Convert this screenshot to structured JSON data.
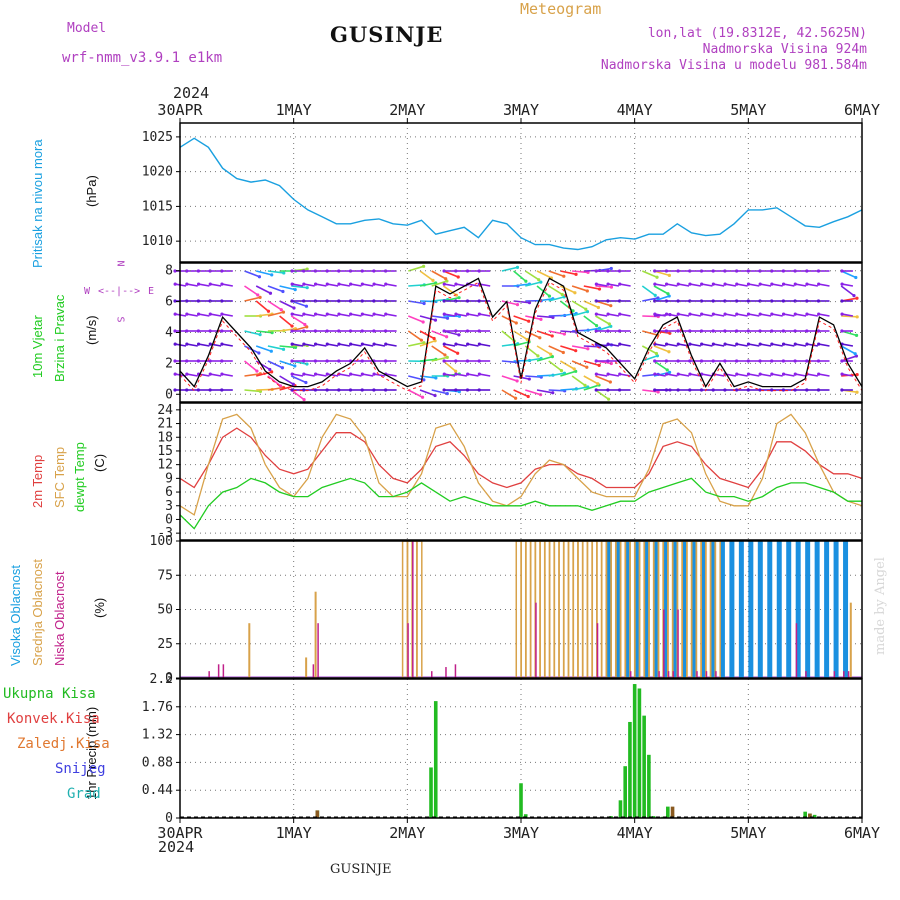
{
  "header": {
    "model_label": "Model",
    "model_name": "wrf-nmm_v3.9.1 e1km",
    "title": "GUSINJE",
    "meteogram": "Meteogram",
    "lonlat": "lon,lat (19.8312E, 42.5625N)",
    "elev": "Nadmorska Visina 924m",
    "elev_model": "Nadmorska Visina u modelu 981.584m",
    "footer": "GUSINJE",
    "watermark": "made by Angel"
  },
  "time_axis": {
    "year": "2024",
    "labels": [
      "30APR",
      "1MAY",
      "2MAY",
      "3MAY",
      "4MAY",
      "5MAY",
      "6MAY"
    ]
  },
  "side_labels": {
    "pressure": "Pritisak na nivou mora",
    "pressure_unit": "(hPa)",
    "wind1": "10m Vjetar",
    "wind2": "Brzina i Pravac",
    "wind_unit": "(m/s)",
    "compass_n": "N",
    "compass_s": "S",
    "compass_w": "W",
    "compass_e": "E",
    "temp1": "2m Temp",
    "temp2": "SFC Temp",
    "temp3": "dewpt Temp",
    "temp_unit": "(C)",
    "cloud1": "Visoka Oblacnost",
    "cloud2": "Srednja Oblacnost",
    "cloud3": "Niska Oblacnost",
    "cloud_unit": "(%)",
    "precip_unit": "1hr Precip (mm)",
    "legend": [
      "Ukupna Kisa",
      "Konvek.Kisa",
      "Zaledj.Kisa",
      "Snijeg",
      "Grad"
    ]
  },
  "colors": {
    "pressure": "#1aa0e0",
    "temp2m": "#e04040",
    "sfc": "#d8a24a",
    "dew": "#22cc22",
    "cloud_high": "#1a90e0",
    "cloud_mid": "#d8a24a",
    "cloud_low": "#c0208a",
    "rain_total": "#22bb22",
    "rain_conv": "#e04040",
    "freezing": "#e07830",
    "snow": "#4040e0",
    "hail": "#20b0b0",
    "label_purple": "#b040c0"
  },
  "chart_data": [
    {
      "type": "line",
      "name": "pressure",
      "ylabel": "(hPa)",
      "yticks": [
        1010,
        1015,
        1020,
        1025
      ],
      "ylim": [
        1007,
        1027
      ],
      "x_hours": [
        0,
        3,
        6,
        9,
        12,
        15,
        18,
        21,
        24,
        27,
        30,
        33,
        36,
        39,
        42,
        45,
        48,
        51,
        54,
        57,
        60,
        63,
        66,
        69,
        72,
        75,
        78,
        81,
        84,
        87,
        90,
        93,
        96,
        99,
        102,
        105,
        108,
        111,
        114,
        117,
        120,
        123,
        126,
        129,
        132,
        135,
        138,
        141,
        144
      ],
      "values": [
        1023.5,
        1024.8,
        1023.5,
        1020.5,
        1019.0,
        1018.5,
        1018.8,
        1018.0,
        1016.0,
        1014.5,
        1013.5,
        1012.5,
        1012.5,
        1013.0,
        1013.2,
        1012.5,
        1012.3,
        1013.0,
        1011.0,
        1011.5,
        1012.0,
        1010.5,
        1013.0,
        1012.5,
        1010.5,
        1009.5,
        1009.5,
        1009.0,
        1008.8,
        1009.2,
        1010.2,
        1010.5,
        1010.3,
        1011.0,
        1011.0,
        1012.5,
        1011.2,
        1010.8,
        1011.0,
        1012.5,
        1014.5,
        1014.5,
        1014.8,
        1013.5,
        1012.2,
        1012.0,
        1012.8,
        1013.5,
        1014.5
      ]
    },
    {
      "type": "line",
      "name": "wind speed",
      "ylabel": "(m/s)",
      "yticks": [
        0,
        2,
        4,
        6,
        8
      ],
      "ylim": [
        -0.5,
        8.5
      ],
      "x_hours": [
        0,
        3,
        6,
        9,
        12,
        15,
        18,
        21,
        24,
        27,
        30,
        33,
        36,
        39,
        42,
        45,
        48,
        51,
        54,
        57,
        60,
        63,
        66,
        69,
        72,
        75,
        78,
        81,
        84,
        87,
        90,
        93,
        96,
        99,
        102,
        105,
        108,
        111,
        114,
        117,
        120,
        123,
        126,
        129,
        132,
        135,
        138,
        141,
        144
      ],
      "values": [
        1.5,
        0.5,
        2.5,
        5.0,
        4.0,
        3.0,
        1.5,
        0.8,
        0.5,
        0.5,
        0.8,
        1.5,
        2.0,
        3.0,
        1.5,
        1.0,
        0.5,
        0.8,
        7.0,
        6.5,
        7.0,
        7.5,
        5.0,
        6.0,
        1.0,
        5.5,
        7.5,
        7.0,
        4.0,
        3.5,
        3.0,
        2.0,
        1.0,
        3.0,
        4.5,
        5.0,
        2.5,
        0.5,
        2.0,
        0.5,
        0.8,
        0.5,
        0.5,
        0.5,
        1.0,
        5.0,
        4.5,
        2.0,
        0.5
      ]
    },
    {
      "type": "line",
      "name": "temperature",
      "ylabel": "(C)",
      "yticks": [
        -3,
        0,
        3,
        6,
        9,
        12,
        15,
        18,
        21,
        24
      ],
      "ylim": [
        -4.5,
        25.5
      ],
      "x_hours": [
        0,
        3,
        6,
        9,
        12,
        15,
        18,
        21,
        24,
        27,
        30,
        33,
        36,
        39,
        42,
        45,
        48,
        51,
        54,
        57,
        60,
        63,
        66,
        69,
        72,
        75,
        78,
        81,
        84,
        87,
        90,
        93,
        96,
        99,
        102,
        105,
        108,
        111,
        114,
        117,
        120,
        123,
        126,
        129,
        132,
        135,
        138,
        141,
        144
      ],
      "series": [
        {
          "name": "2m Temp",
          "values": [
            9,
            7,
            12,
            18,
            20,
            18,
            14,
            11,
            10,
            11,
            15,
            19,
            19,
            17,
            12,
            9,
            8,
            11,
            16,
            17,
            14,
            10,
            8,
            7,
            8,
            11,
            12,
            12,
            10,
            9,
            7,
            7,
            7,
            10,
            16,
            17,
            16,
            12,
            9,
            8,
            7,
            11,
            17,
            17,
            15,
            12,
            10,
            10,
            9
          ]
        },
        {
          "name": "SFC Temp",
          "values": [
            3,
            1,
            12,
            22,
            23,
            20,
            12,
            7,
            5,
            9,
            18,
            23,
            22,
            18,
            8,
            5,
            5,
            10,
            20,
            21,
            16,
            8,
            4,
            3,
            5,
            10,
            13,
            12,
            9,
            6,
            5,
            5,
            5,
            11,
            21,
            22,
            19,
            10,
            4,
            3,
            3,
            9,
            21,
            23,
            19,
            12,
            6,
            4,
            3
          ]
        },
        {
          "name": "dewpt Temp",
          "values": [
            1,
            -2,
            3,
            6,
            7,
            9,
            8,
            6,
            5,
            5,
            7,
            8,
            9,
            8,
            5,
            5,
            6,
            8,
            6,
            4,
            5,
            4,
            3,
            3,
            3,
            4,
            3,
            3,
            3,
            2,
            3,
            4,
            4,
            6,
            7,
            8,
            9,
            6,
            5,
            5,
            4,
            5,
            7,
            8,
            8,
            7,
            6,
            4,
            4
          ]
        }
      ]
    },
    {
      "type": "bar",
      "name": "cloud cover",
      "ylabel": "(%)",
      "yticks": [
        0,
        25,
        50,
        75,
        100
      ],
      "ylim": [
        0,
        100
      ],
      "series": [
        {
          "name": "Visoka Oblacnost",
          "x_hours": [
            90,
            92,
            94,
            96,
            98,
            100,
            102,
            104,
            106,
            108,
            110,
            112,
            114,
            116,
            118,
            120,
            122,
            124,
            126,
            128,
            130,
            132,
            134,
            136,
            138,
            140
          ],
          "values": [
            100,
            100,
            100,
            100,
            100,
            100,
            100,
            100,
            100,
            100,
            100,
            100,
            100,
            100,
            100,
            100,
            100,
            100,
            100,
            100,
            100,
            100,
            100,
            100,
            100,
            100
          ]
        },
        {
          "name": "Srednja Oblacnost",
          "x_hours": [
            14,
            26,
            28,
            47,
            48,
            49,
            50,
            71,
            72,
            73,
            74,
            75,
            76,
            77,
            78,
            79,
            80,
            81,
            82,
            83,
            84,
            85,
            86,
            87,
            88,
            89,
            90,
            91,
            92,
            93,
            94,
            95,
            96,
            97,
            98,
            99,
            100,
            101,
            102,
            103,
            104,
            105,
            106,
            107,
            108,
            109,
            110,
            111,
            112,
            113,
            141
          ],
          "values": [
            40,
            15,
            63,
            100,
            100,
            100,
            100,
            100,
            100,
            100,
            100,
            100,
            100,
            100,
            100,
            100,
            100,
            100,
            100,
            100,
            100,
            100,
            100,
            100,
            100,
            100,
            100,
            100,
            100,
            100,
            100,
            100,
            100,
            100,
            100,
            100,
            100,
            100,
            100,
            100,
            100,
            100,
            100,
            100,
            100,
            100,
            100,
            100,
            100,
            100,
            55
          ]
        },
        {
          "name": "Niska Oblacnost",
          "x_hours": [
            6,
            8,
            9,
            28,
            29,
            48,
            49,
            53,
            56,
            58,
            75,
            88,
            95,
            101,
            102,
            103,
            104,
            105,
            109,
            111,
            113,
            130,
            132,
            138,
            140,
            141
          ],
          "values": [
            5,
            10,
            10,
            10,
            40,
            40,
            100,
            5,
            8,
            10,
            55,
            40,
            5,
            5,
            50,
            5,
            5,
            50,
            5,
            5,
            5,
            40,
            5,
            5,
            5,
            5
          ]
        }
      ]
    },
    {
      "type": "bar",
      "name": "precipitation",
      "ylabel": "1hr Precip (mm)",
      "yticks": [
        0,
        0.44,
        0.88,
        1.32,
        1.76,
        2.2
      ],
      "ylim": [
        0,
        2.2
      ],
      "series": [
        {
          "name": "Ukupna Kisa",
          "x_hours": [
            29,
            53,
            54,
            55,
            72,
            73,
            91,
            93,
            94,
            95,
            96,
            97,
            98,
            99,
            100,
            101,
            102,
            103,
            104,
            132,
            133,
            134
          ],
          "values": [
            0.12,
            0.8,
            1.85,
            0.02,
            0.55,
            0.06,
            0.03,
            0.28,
            0.82,
            1.52,
            2.12,
            2.05,
            1.62,
            1.0,
            0.03,
            0.02,
            0.02,
            0.18,
            0.05,
            0.1,
            0.07,
            0.05
          ]
        },
        {
          "name": "Konvek.Kisa",
          "x_hours": [
            29,
            104,
            133
          ],
          "values": [
            0.12,
            0.18,
            0.07
          ]
        }
      ]
    }
  ]
}
